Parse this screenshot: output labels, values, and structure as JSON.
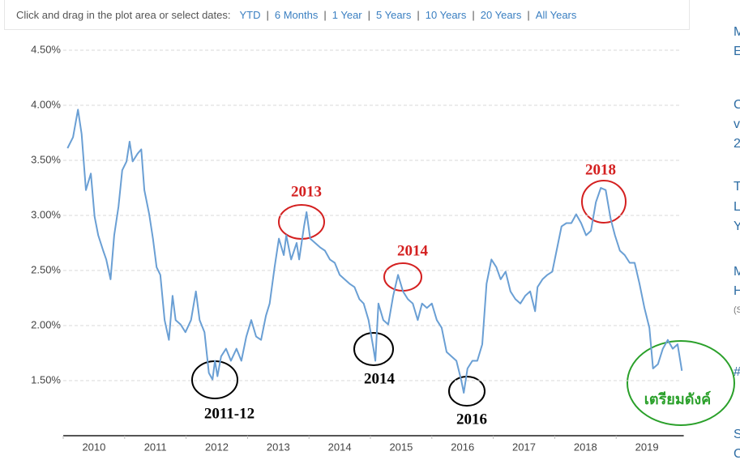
{
  "toolbar": {
    "prompt": "Click and drag in the plot area or select dates:",
    "separator": "|",
    "links": [
      "YTD",
      "6 Months",
      "1 Year",
      "5 Years",
      "10 Years",
      "20 Years",
      "All Years"
    ]
  },
  "sidebar": [
    "M",
    "E",
    "C",
    "v",
    "2",
    "T",
    "L",
    "Y",
    "M",
    "H",
    "(S",
    "#",
    "S",
    "C"
  ],
  "chart_data": {
    "type": "line",
    "x": [
      2010.07,
      2010.16,
      2010.24,
      2010.3,
      2010.37,
      2010.45,
      2010.51,
      2010.57,
      2010.65,
      2010.7,
      2010.77,
      2010.83,
      2010.9,
      2010.96,
      2011.03,
      2011.08,
      2011.13,
      2011.21,
      2011.27,
      2011.32,
      2011.4,
      2011.46,
      2011.52,
      2011.58,
      2011.65,
      2011.72,
      2011.78,
      2011.83,
      2011.91,
      2011.99,
      2012.08,
      2012.16,
      2012.22,
      2012.3,
      2012.37,
      2012.43,
      2012.47,
      2012.51,
      2012.57,
      2012.65,
      2012.73,
      2012.82,
      2012.9,
      2012.98,
      2013.06,
      2013.14,
      2013.22,
      2013.3,
      2013.36,
      2013.44,
      2013.51,
      2013.59,
      2013.63,
      2013.71,
      2013.8,
      2013.84,
      2013.92,
      2013.96,
      2014.02,
      2014.1,
      2014.18,
      2014.26,
      2014.34,
      2014.42,
      2014.5,
      2014.58,
      2014.66,
      2014.74,
      2014.82,
      2014.89,
      2014.97,
      2015.05,
      2015.08,
      2015.13,
      2015.21,
      2015.29,
      2015.37,
      2015.45,
      2015.53,
      2015.61,
      2015.69,
      2015.77,
      2015.84,
      2015.92,
      2016.0,
      2016.08,
      2016.16,
      2016.24,
      2016.32,
      2016.4,
      2016.48,
      2016.52,
      2016.58,
      2016.66,
      2016.74,
      2016.82,
      2016.89,
      2016.97,
      2017.05,
      2017.12,
      2017.2,
      2017.28,
      2017.36,
      2017.44,
      2017.52,
      2017.6,
      2017.68,
      2017.72,
      2017.8,
      2017.88,
      2017.96,
      2018.03,
      2018.11,
      2018.19,
      2018.27,
      2018.35,
      2018.43,
      2018.51,
      2018.59,
      2018.67,
      2018.75,
      2018.83,
      2018.91,
      2018.98,
      2019.06,
      2019.14,
      2019.22,
      2019.3,
      2019.38,
      2019.46,
      2019.54,
      2019.6,
      2019.68,
      2019.76,
      2019.84,
      2019.92,
      2020.0,
      2020.07
    ],
    "series": [
      {
        "color": "#6a9fd4",
        "values": [
          3.61,
          3.71,
          3.96,
          3.74,
          3.23,
          3.38,
          2.99,
          2.82,
          2.68,
          2.6,
          2.42,
          2.82,
          3.08,
          3.41,
          3.49,
          3.67,
          3.49,
          3.56,
          3.6,
          3.23,
          3.01,
          2.79,
          2.53,
          2.46,
          2.05,
          1.87,
          2.27,
          2.05,
          2.01,
          1.94,
          2.05,
          2.31,
          2.05,
          1.94,
          1.57,
          1.51,
          1.68,
          1.54,
          1.72,
          1.79,
          1.68,
          1.79,
          1.68,
          1.9,
          2.05,
          1.9,
          1.87,
          2.09,
          2.2,
          2.53,
          2.79,
          2.64,
          2.82,
          2.6,
          2.75,
          2.6,
          2.9,
          3.03,
          2.79,
          2.75,
          2.71,
          2.68,
          2.6,
          2.57,
          2.46,
          2.42,
          2.38,
          2.35,
          2.24,
          2.2,
          2.05,
          1.79,
          1.68,
          2.2,
          2.05,
          2.01,
          2.27,
          2.46,
          2.31,
          2.24,
          2.2,
          2.05,
          2.2,
          2.16,
          2.2,
          2.05,
          1.98,
          1.76,
          1.72,
          1.68,
          1.5,
          1.39,
          1.61,
          1.68,
          1.68,
          1.83,
          2.38,
          2.6,
          2.53,
          2.42,
          2.49,
          2.31,
          2.24,
          2.2,
          2.27,
          2.31,
          2.13,
          2.35,
          2.42,
          2.46,
          2.49,
          2.68,
          2.9,
          2.93,
          2.93,
          3.01,
          2.93,
          2.82,
          2.86,
          3.12,
          3.25,
          3.23,
          2.97,
          2.82,
          2.68,
          2.64,
          2.57,
          2.57,
          2.38,
          2.16,
          1.98,
          1.61,
          1.65,
          1.79,
          1.87,
          1.79,
          1.83,
          1.59
        ]
      }
    ],
    "xlim": [
      2010,
      2020.1
    ],
    "xticks": [
      2010,
      2011,
      2012,
      2013,
      2014,
      2015,
      2016,
      2017,
      2018,
      2019
    ],
    "ylim": [
      1,
      4.625
    ],
    "yticks": [
      {
        "value": 1.5,
        "label": "1.50%"
      },
      {
        "value": 2,
        "label": "2.00%"
      },
      {
        "value": 2.5,
        "label": "2.50%"
      },
      {
        "value": 3,
        "label": "3.00%"
      },
      {
        "value": 3.5,
        "label": "3.50%"
      },
      {
        "value": 4,
        "label": "4.00%"
      },
      {
        "value": 4.5,
        "label": "4.50%"
      }
    ],
    "grid": true,
    "annotations": [
      {
        "text": "2013",
        "color": "#d42020"
      },
      {
        "text": "2014",
        "color": "#d42020"
      },
      {
        "text": "2018",
        "color": "#d42020"
      },
      {
        "text": "2011-12",
        "color": "#000000"
      },
      {
        "text": "2014",
        "color": "#000000"
      },
      {
        "text": "2016",
        "color": "#000000"
      },
      {
        "text": "เตรียมดังค์",
        "color": "#2aa02a"
      }
    ]
  }
}
